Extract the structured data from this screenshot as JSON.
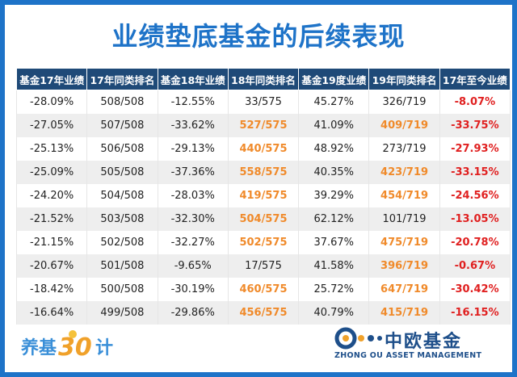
{
  "title": "业绩垫底基金的后续表现",
  "headers": [
    "基金17年业绩",
    "17年同类排名",
    "基金18年业绩",
    "18年同类排名",
    "基金19度业绩",
    "19年同类排名",
    "17年至今业绩"
  ],
  "rows": [
    {
      "c1": "-28.09%",
      "c2": "508/508",
      "c3": "-12.55%",
      "c4": "33/575",
      "c5": "45.27%",
      "c6": "326/719",
      "c7": "-8.07%",
      "o4": false,
      "o6": false
    },
    {
      "c1": "-27.05%",
      "c2": "507/508",
      "c3": "-33.62%",
      "c4": "527/575",
      "c5": "41.09%",
      "c6": "409/719",
      "c7": "-33.75%",
      "o4": true,
      "o6": true
    },
    {
      "c1": "-25.13%",
      "c2": "506/508",
      "c3": "-29.13%",
      "c4": "440/575",
      "c5": "48.92%",
      "c6": "273/719",
      "c7": "-27.93%",
      "o4": true,
      "o6": false
    },
    {
      "c1": "-25.09%",
      "c2": "505/508",
      "c3": "-37.36%",
      "c4": "558/575",
      "c5": "40.35%",
      "c6": "423/719",
      "c7": "-33.15%",
      "o4": true,
      "o6": true
    },
    {
      "c1": "-24.20%",
      "c2": "504/508",
      "c3": "-28.03%",
      "c4": "419/575",
      "c5": "39.29%",
      "c6": "454/719",
      "c7": "-24.56%",
      "o4": true,
      "o6": true
    },
    {
      "c1": "-21.52%",
      "c2": "503/508",
      "c3": "-32.30%",
      "c4": "504/575",
      "c5": "62.12%",
      "c6": "101/719",
      "c7": "-13.05%",
      "o4": true,
      "o6": false
    },
    {
      "c1": "-21.15%",
      "c2": "502/508",
      "c3": "-32.27%",
      "c4": "502/575",
      "c5": "37.67%",
      "c6": "475/719",
      "c7": "-20.78%",
      "o4": true,
      "o6": true
    },
    {
      "c1": "-20.67%",
      "c2": "501/508",
      "c3": "-9.65%",
      "c4": "17/575",
      "c5": "41.58%",
      "c6": "396/719",
      "c7": "-0.67%",
      "o4": false,
      "o6": true
    },
    {
      "c1": "-18.42%",
      "c2": "500/508",
      "c3": "-30.19%",
      "c4": "460/575",
      "c5": "25.72%",
      "c6": "647/719",
      "c7": "-30.42%",
      "o4": true,
      "o6": true
    },
    {
      "c1": "-16.64%",
      "c2": "499/508",
      "c3": "-29.86%",
      "c4": "456/575",
      "c5": "40.79%",
      "c6": "415/719",
      "c7": "-16.15%",
      "o4": true,
      "o6": true
    }
  ],
  "logo_left": {
    "text_a": "养基",
    "text_b": "30",
    "text_c": "计"
  },
  "logo_right": {
    "cn": "中欧基金",
    "en": "ZHONG OU ASSET MANAGEMENT"
  },
  "colors": {
    "header_bg": "#1f4a78",
    "title": "#1e73c8",
    "highlight_orange": "#f08a2a",
    "highlight_red": "#e02020"
  }
}
